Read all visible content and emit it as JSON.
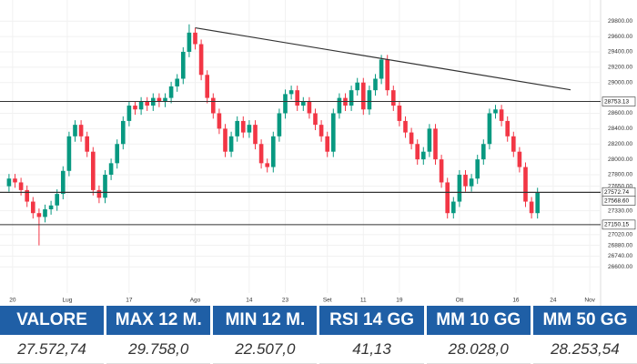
{
  "chart_data": {
    "type": "candlestick",
    "x": [
      0,
      1,
      2,
      3,
      4,
      5,
      6,
      7,
      8,
      9,
      10,
      11,
      12,
      13,
      14,
      15,
      16,
      17,
      18,
      19,
      20,
      21,
      22,
      23,
      24,
      25,
      26,
      27,
      28,
      29,
      30,
      31,
      32,
      33,
      34,
      35,
      36,
      37,
      38,
      39,
      40,
      41,
      42,
      43,
      44,
      45,
      46,
      47,
      48,
      49,
      50,
      51,
      52,
      53,
      54,
      55,
      56,
      57,
      58,
      59,
      60,
      61,
      62,
      63,
      64,
      65,
      66,
      67,
      68,
      69,
      70,
      71,
      72,
      73,
      74,
      75,
      76,
      77,
      78,
      79,
      80,
      81,
      82,
      83,
      84,
      85,
      86,
      87,
      88
    ],
    "open": [
      27650,
      27750,
      27700,
      27600,
      27450,
      27300,
      27250,
      27350,
      27400,
      27550,
      27850,
      28300,
      28450,
      28300,
      28100,
      27600,
      27500,
      27800,
      27950,
      28200,
      28500,
      28700,
      28650,
      28750,
      28700,
      28800,
      28750,
      28800,
      28950,
      29050,
      29400,
      29650,
      29500,
      29100,
      28800,
      28600,
      28400,
      28100,
      28300,
      28500,
      28350,
      28450,
      28200,
      27950,
      27900,
      28300,
      28600,
      28850,
      28900,
      28700,
      28750,
      28600,
      28450,
      28300,
      28100,
      28600,
      28800,
      28700,
      28900,
      29000,
      28650,
      28900,
      29050,
      29300,
      28900,
      28700,
      28500,
      28350,
      28200,
      28000,
      28100,
      28400,
      28000,
      27700,
      27300,
      27450,
      27800,
      27650,
      27750,
      28000,
      28200,
      28600,
      28650,
      28500,
      28300,
      28100,
      27900,
      27450,
      27300
    ],
    "high": [
      27810,
      27810,
      27760,
      27660,
      27510,
      27360,
      27410,
      27460,
      27610,
      27910,
      28360,
      28510,
      28510,
      28360,
      28160,
      27660,
      27860,
      28010,
      28260,
      28560,
      28760,
      28760,
      28810,
      28810,
      28860,
      28860,
      28860,
      29010,
      29110,
      29460,
      29758,
      29710,
      29560,
      29160,
      28860,
      28660,
      28460,
      28360,
      28560,
      28560,
      28510,
      28510,
      28260,
      28010,
      28360,
      28660,
      28910,
      28960,
      28960,
      28810,
      28810,
      28660,
      28510,
      28360,
      28660,
      28860,
      28860,
      28960,
      29060,
      29060,
      28960,
      29110,
      29360,
      29360,
      28960,
      28760,
      28560,
      28410,
      28260,
      28160,
      28460,
      28460,
      28060,
      27760,
      27510,
      27860,
      27860,
      27810,
      28060,
      28260,
      28660,
      28710,
      28710,
      28560,
      28360,
      28160,
      27960,
      27510,
      27630
    ],
    "low": [
      27580,
      27630,
      27530,
      27380,
      27230,
      26880,
      27180,
      27280,
      27330,
      27480,
      27780,
      28230,
      28230,
      28030,
      27530,
      27430,
      27430,
      27730,
      27880,
      28130,
      28430,
      28580,
      28580,
      28630,
      28630,
      28680,
      28680,
      28730,
      28880,
      28980,
      29330,
      29430,
      29030,
      28730,
      28530,
      28330,
      28030,
      28030,
      28230,
      28280,
      28280,
      28130,
      27880,
      27830,
      27830,
      28230,
      28530,
      28780,
      28630,
      28630,
      28530,
      28380,
      28230,
      28030,
      28030,
      28530,
      28630,
      28630,
      28830,
      28580,
      28580,
      28830,
      28980,
      28830,
      28630,
      28430,
      28280,
      28130,
      27930,
      27930,
      28030,
      27930,
      27630,
      27230,
      27230,
      27380,
      27580,
      27580,
      27680,
      27930,
      28130,
      28530,
      28430,
      28230,
      28030,
      27830,
      27380,
      27230,
      27230
    ],
    "close": [
      27750,
      27700,
      27600,
      27450,
      27300,
      27250,
      27350,
      27400,
      27550,
      27850,
      28300,
      28450,
      28300,
      28100,
      27600,
      27500,
      27800,
      27950,
      28200,
      28500,
      28700,
      28650,
      28750,
      28700,
      28800,
      28750,
      28800,
      28950,
      29050,
      29400,
      29650,
      29500,
      29100,
      28800,
      28600,
      28400,
      28100,
      28300,
      28500,
      28350,
      28450,
      28200,
      27950,
      27900,
      28300,
      28600,
      28850,
      28900,
      28700,
      28750,
      28600,
      28450,
      28300,
      28100,
      28600,
      28800,
      28700,
      28900,
      29000,
      28650,
      28900,
      29050,
      29300,
      28900,
      28700,
      28500,
      28350,
      28200,
      28000,
      28100,
      28400,
      28000,
      27700,
      27300,
      27450,
      27800,
      27650,
      27750,
      28000,
      28200,
      28600,
      28650,
      28500,
      28300,
      28100,
      27900,
      27450,
      27300,
      27572.74
    ],
    "up_color": "#089981",
    "down_color": "#f23645",
    "xlim": [
      -1.5,
      98.5
    ],
    "xticks": [
      {
        "value": 0.6,
        "label": "20"
      },
      {
        "value": 9.7,
        "label": "Lug"
      },
      {
        "value": 20,
        "label": "17"
      },
      {
        "value": 31,
        "label": "Ago"
      },
      {
        "value": 40,
        "label": "14"
      },
      {
        "value": 46,
        "label": "23"
      },
      {
        "value": 53,
        "label": "Set"
      },
      {
        "value": 59,
        "label": "11"
      },
      {
        "value": 65,
        "label": "19"
      },
      {
        "value": 75,
        "label": "Ott"
      },
      {
        "value": 84.4,
        "label": "16"
      },
      {
        "value": 90.6,
        "label": "24"
      },
      {
        "value": 96.7,
        "label": "Nov"
      }
    ],
    "ylim": [
      26260,
      29980
    ],
    "yticks": [
      {
        "value": 29800,
        "label": "29800.00"
      },
      {
        "value": 29600,
        "label": "29600.00"
      },
      {
        "value": 29400,
        "label": "29400.00"
      },
      {
        "value": 29200,
        "label": "29200.00"
      },
      {
        "value": 29000,
        "label": "29000.00"
      },
      {
        "value": 28600,
        "label": "28600.00"
      },
      {
        "value": 28400,
        "label": "28400.00"
      },
      {
        "value": 28200,
        "label": "28200.00"
      },
      {
        "value": 28000,
        "label": "28000.00"
      },
      {
        "value": 27800,
        "label": "27800.00"
      },
      {
        "value": 27650,
        "label": "27650.00"
      },
      {
        "value": 27330,
        "label": "27330.00"
      },
      {
        "value": 27020,
        "label": "27020.00"
      },
      {
        "value": 26880,
        "label": "26880.00"
      },
      {
        "value": 26740,
        "label": "26740.00"
      },
      {
        "value": 26600,
        "label": "26600.00"
      }
    ],
    "levels": [
      {
        "value": 28753.13,
        "label": "28753.13"
      },
      {
        "value": 27572.74,
        "label": "27572.74"
      },
      {
        "value": 27568.6,
        "label": "27568.60"
      },
      {
        "value": 27150.15,
        "label": "27150.15"
      }
    ],
    "trendline": {
      "x": [
        31,
        93.5
      ],
      "y": [
        29713,
        28906
      ]
    },
    "grid": true
  },
  "table": {
    "header": [
      "VALORE",
      "MAX 12 M.",
      "MIN 12 M.",
      "RSI 14 GG",
      "MM 10 GG",
      "MM 50 GG"
    ],
    "rows": [
      [
        "27.572,74",
        "29.758,0",
        "22.507,0",
        "41,13",
        "28.028,0",
        "28.253,54"
      ]
    ]
  }
}
